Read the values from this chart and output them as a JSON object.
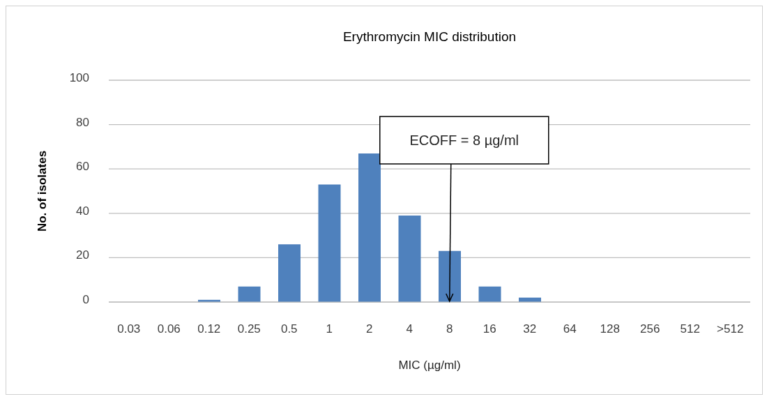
{
  "chart_data": {
    "type": "bar",
    "title": "Erythromycin MIC distribution",
    "xlabel": "MIC (µg/ml)",
    "ylabel": "No. of isolates",
    "categories": [
      "0.03",
      "0.06",
      "0.12",
      "0.25",
      "0.5",
      "1",
      "2",
      "4",
      "8",
      "16",
      "32",
      "64",
      "128",
      "256",
      "512",
      ">512"
    ],
    "values": [
      0,
      0,
      1,
      7,
      26,
      53,
      67,
      39,
      23,
      7,
      2,
      0,
      0,
      0,
      0,
      0
    ],
    "color": "#4f81bd",
    "ylim": [
      0,
      100
    ],
    "yticks": [
      0,
      20,
      40,
      60,
      80,
      100
    ],
    "grid": "y",
    "annotations": [
      {
        "text": "ECOFF = 8 µg/ml",
        "x": "8",
        "y": 0
      }
    ]
  }
}
